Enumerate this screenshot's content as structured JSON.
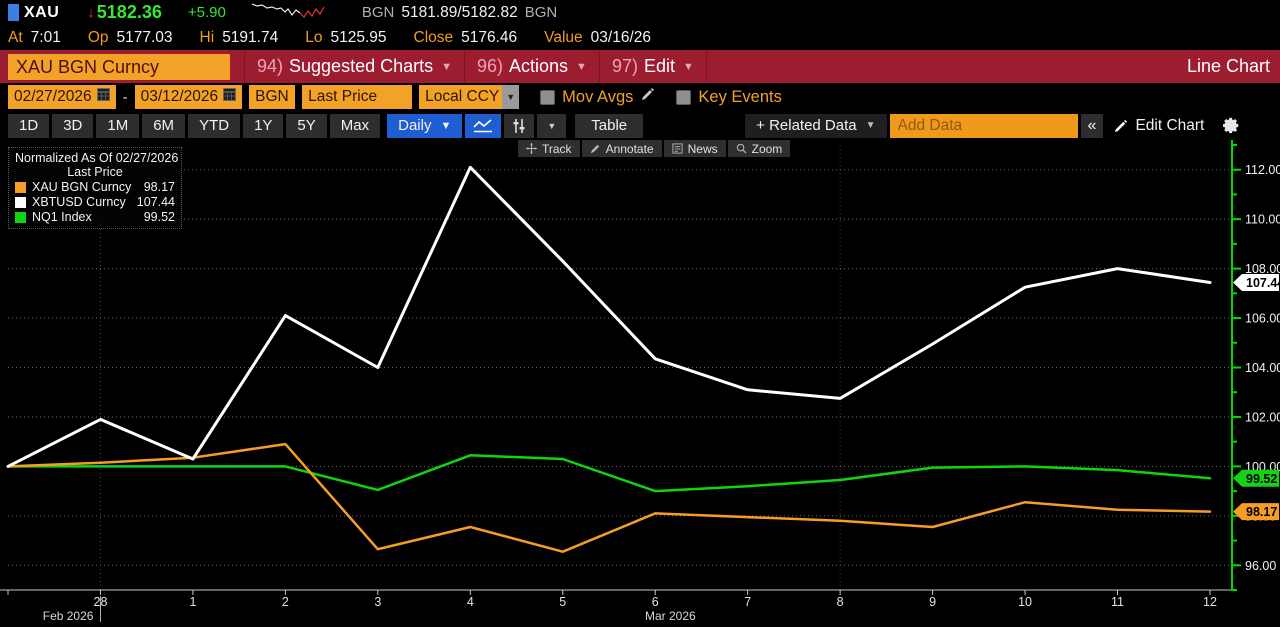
{
  "top_bar": {
    "ticker": "XAU",
    "last_price": "5182.36",
    "change": "+5.90",
    "bid_ask_left": "BGN",
    "bid_ask": "5181.89/5182.82",
    "bid_ask_right": "BGN",
    "stats": [
      {
        "label": "At",
        "value": "7:01"
      },
      {
        "label": "Op",
        "value": "5177.03"
      },
      {
        "label": "Hi",
        "value": "5191.74"
      },
      {
        "label": "Lo",
        "value": "5125.95"
      },
      {
        "label": "Close",
        "value": "5176.46"
      },
      {
        "label": "Value",
        "value": "03/16/26"
      }
    ]
  },
  "menu_bar": {
    "security_field": "XAU BGN Curncy",
    "items": [
      {
        "num": "94)",
        "label": "Suggested Charts"
      },
      {
        "num": "96)",
        "label": "Actions"
      },
      {
        "num": "97)",
        "label": "Edit"
      }
    ],
    "right_title": "Line Chart"
  },
  "toolbar1": {
    "date_from": "02/27/2026",
    "date_separator": "-",
    "date_to": "03/12/2026",
    "source": "BGN",
    "field": "Last Price",
    "currency": "Local CCY",
    "mov_avgs_label": "Mov Avgs",
    "key_events_label": "Key Events"
  },
  "toolbar2": {
    "ranges": [
      "1D",
      "3D",
      "1M",
      "6M",
      "YTD",
      "1Y",
      "5Y",
      "Max"
    ],
    "period": "Daily",
    "table_label": "Table",
    "related_data_label": "+ Related Data",
    "add_data_placeholder": "Add Data",
    "collapse_label": "«",
    "edit_chart_label": "Edit Chart"
  },
  "chart_toolbar": {
    "track": "Track",
    "annotate": "Annotate",
    "news": "News",
    "zoom": "Zoom"
  },
  "legend": {
    "title": "Normalized As Of 02/27/2026",
    "subtitle": "Last Price",
    "items": [
      {
        "name": "XAU BGN Curncy",
        "value": "98.17",
        "color": "#f59d26"
      },
      {
        "name": "XBTUSD Curncy",
        "value": "107.44",
        "color": "#ffffff"
      },
      {
        "name": "NQ1 Index",
        "value": "99.52",
        "color": "#11d411"
      }
    ]
  },
  "chart_data": {
    "type": "line",
    "x_dates": [
      "02/27",
      "02/28",
      "03/01",
      "03/02",
      "03/03",
      "03/04",
      "03/05",
      "03/06",
      "03/07",
      "03/08",
      "03/09",
      "03/10",
      "03/11",
      "03/12"
    ],
    "x_tick_labels": [
      {
        "i": 1,
        "label": "28"
      },
      {
        "i": 2,
        "label": "1"
      },
      {
        "i": 3,
        "label": "2"
      },
      {
        "i": 4,
        "label": "3"
      },
      {
        "i": 5,
        "label": "4"
      },
      {
        "i": 6,
        "label": "5"
      },
      {
        "i": 7,
        "label": "6"
      },
      {
        "i": 8,
        "label": "7"
      },
      {
        "i": 9,
        "label": "8"
      },
      {
        "i": 10,
        "label": "9"
      },
      {
        "i": 11,
        "label": "10"
      },
      {
        "i": 12,
        "label": "11"
      },
      {
        "i": 13,
        "label": "12"
      }
    ],
    "month_labels": [
      {
        "i": 1,
        "label": "Feb 2026",
        "anchor": "end"
      },
      {
        "x": 645,
        "label": "Mar 2026",
        "anchor": "start"
      }
    ],
    "month_separator_index": 1,
    "ylim": [
      95.0,
      113.0
    ],
    "yticks": [
      {
        "v": 96,
        "label": "96.00"
      },
      {
        "v": 98,
        "label": "98.00"
      },
      {
        "v": 100,
        "label": "100.00"
      },
      {
        "v": 102,
        "label": "102.00"
      },
      {
        "v": 104,
        "label": "104.00"
      },
      {
        "v": 106,
        "label": "106.00"
      },
      {
        "v": 108,
        "label": "108.00"
      },
      {
        "v": 110,
        "label": "110.00"
      },
      {
        "v": 112,
        "label": "112.00"
      }
    ],
    "grid_vline_indices": [
      1,
      9
    ],
    "series": [
      {
        "name": "NQ1 Index",
        "color": "#11d411",
        "width": 2.5,
        "values": [
          100.0,
          100.0,
          100.0,
          100.0,
          99.05,
          100.45,
          100.3,
          99.0,
          99.2,
          99.45,
          99.95,
          100.0,
          99.85,
          99.52
        ]
      },
      {
        "name": "XAU BGN Curncy",
        "color": "#f59d26",
        "width": 2.5,
        "values": [
          100.0,
          100.15,
          100.35,
          100.9,
          96.65,
          97.55,
          96.55,
          98.1,
          97.95,
          97.8,
          97.55,
          98.55,
          98.25,
          98.17
        ]
      },
      {
        "name": "XBTUSD Curncy",
        "color": "#ffffff",
        "width": 3,
        "values": [
          100.0,
          101.9,
          100.3,
          106.1,
          104.0,
          112.1,
          108.3,
          104.35,
          103.1,
          102.75,
          104.95,
          107.25,
          108.0,
          107.44
        ]
      }
    ],
    "last_badges": [
      {
        "label": "107.44",
        "value": 107.44,
        "color": "#ffffff"
      },
      {
        "label": "99.52",
        "value": 99.52,
        "color": "#17d117"
      },
      {
        "label": "98.17",
        "value": 98.17,
        "color": "#f59d26"
      }
    ]
  }
}
